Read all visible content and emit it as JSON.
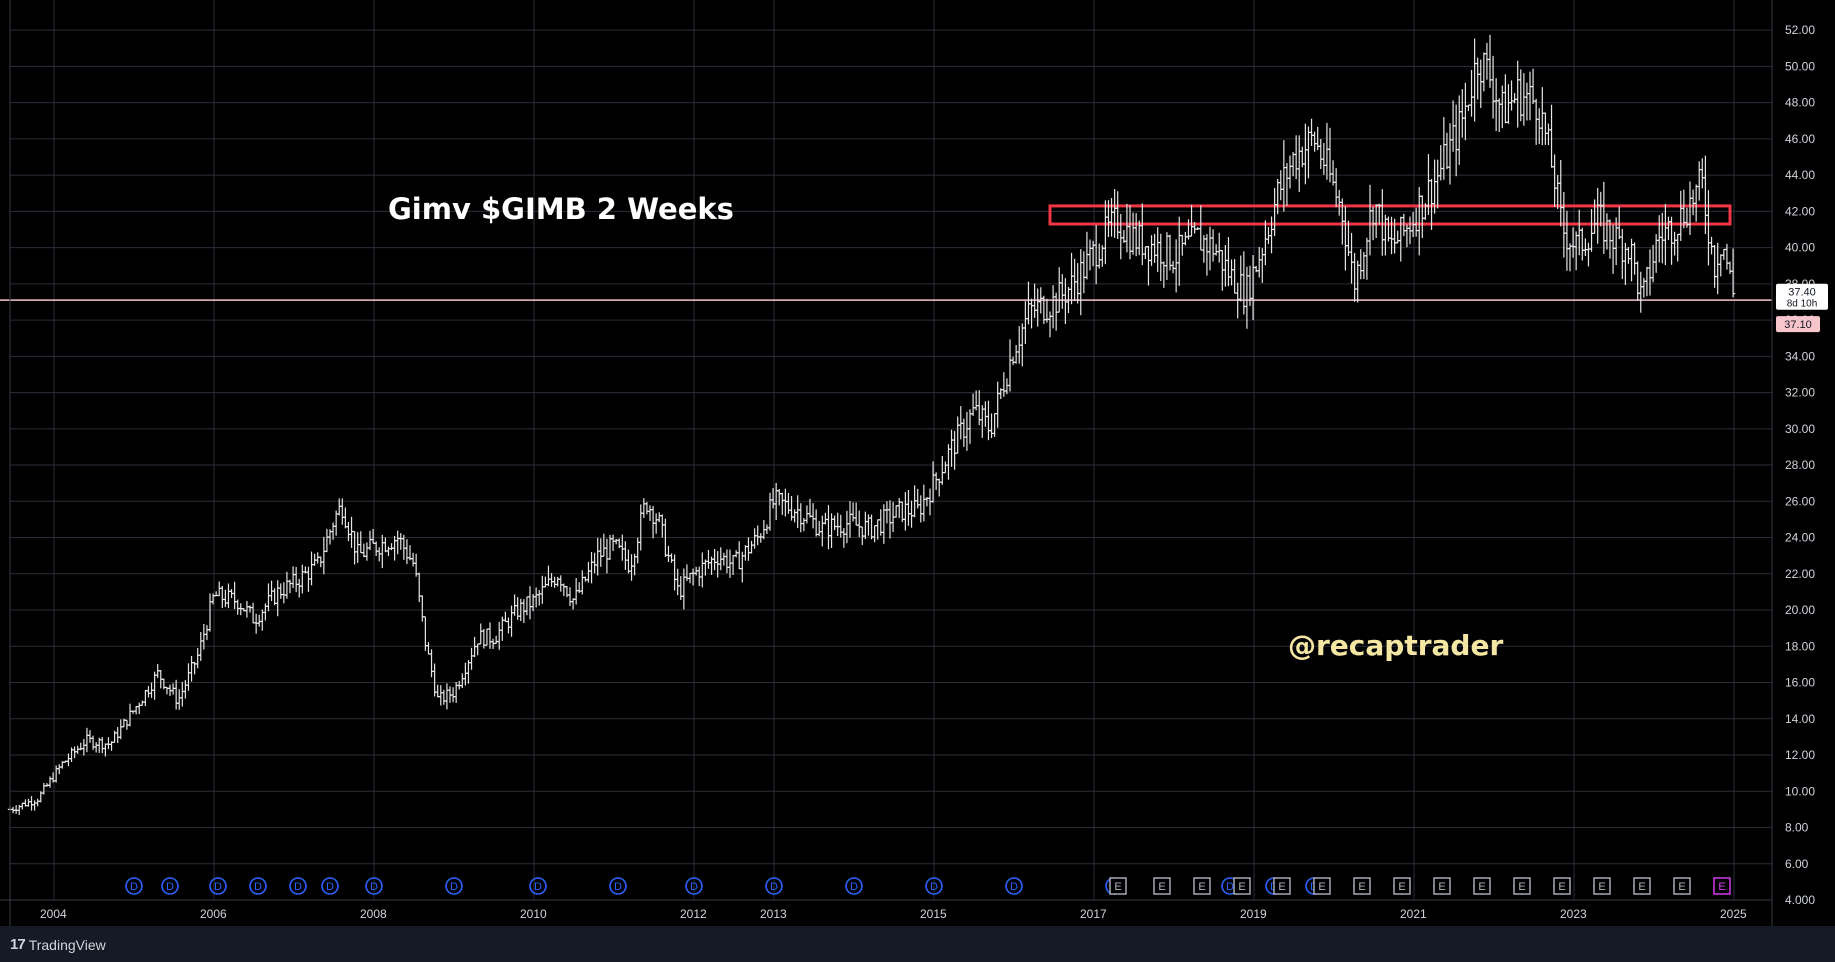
{
  "chart_data": {
    "type": "ohlc",
    "title": "Gimv $GIMB 2 Weeks",
    "watermark": "@recaptrader",
    "xlabel": "",
    "ylabel": "",
    "ylim": [
      4.0,
      53.0
    ],
    "y_ticks": [
      "52.00",
      "50.00",
      "48.00",
      "46.00",
      "44.00",
      "42.00",
      "40.00",
      "38.00",
      "36.00",
      "34.00",
      "32.00",
      "30.00",
      "28.00",
      "26.00",
      "24.00",
      "22.00",
      "20.00",
      "18.00",
      "16.00",
      "14.00",
      "12.00",
      "10.00",
      "8.00",
      "6.00",
      "4.000"
    ],
    "x_ticks": [
      {
        "label": "2004",
        "t": 2004.0
      },
      {
        "label": "2006",
        "t": 2006.0
      },
      {
        "label": "2008",
        "t": 2008.0
      },
      {
        "label": "2010",
        "t": 2010.0
      },
      {
        "label": "2012",
        "t": 2012.0
      },
      {
        "label": "2013",
        "t": 2013.0
      },
      {
        "label": "2015",
        "t": 2015.0
      },
      {
        "label": "2017",
        "t": 2017.0
      },
      {
        "label": "2019",
        "t": 2019.0
      },
      {
        "label": "2021",
        "t": 2021.0
      },
      {
        "label": "2023",
        "t": 2023.0
      },
      {
        "label": "2025",
        "t": 2025.0
      }
    ],
    "xlim": [
      2003.45,
      2025.45
    ],
    "price_path": [
      [
        2003.45,
        9.0
      ],
      [
        2003.8,
        9.6
      ],
      [
        2004.1,
        11.5
      ],
      [
        2004.4,
        12.8
      ],
      [
        2004.7,
        12.6
      ],
      [
        2005.0,
        14.5
      ],
      [
        2005.3,
        16.5
      ],
      [
        2005.55,
        15.0
      ],
      [
        2005.8,
        17.5
      ],
      [
        2006.0,
        20.8
      ],
      [
        2006.3,
        20.5
      ],
      [
        2006.5,
        19.5
      ],
      [
        2006.8,
        21.0
      ],
      [
        2007.0,
        21.5
      ],
      [
        2007.3,
        22.5
      ],
      [
        2007.5,
        25.0
      ],
      [
        2007.6,
        25.8
      ],
      [
        2007.8,
        23.0
      ],
      [
        2008.0,
        23.5
      ],
      [
        2008.3,
        24.0
      ],
      [
        2008.5,
        22.5
      ],
      [
        2008.65,
        18.0
      ],
      [
        2008.8,
        15.0
      ],
      [
        2009.0,
        15.5
      ],
      [
        2009.3,
        18.5
      ],
      [
        2009.5,
        18.5
      ],
      [
        2009.8,
        20.0
      ],
      [
        2010.0,
        20.5
      ],
      [
        2010.3,
        22.0
      ],
      [
        2010.5,
        20.5
      ],
      [
        2010.8,
        23.0
      ],
      [
        2011.0,
        23.5
      ],
      [
        2011.2,
        22.5
      ],
      [
        2011.4,
        26.0
      ],
      [
        2011.55,
        25.0
      ],
      [
        2011.8,
        21.0
      ],
      [
        2012.0,
        22.0
      ],
      [
        2012.3,
        23.0
      ],
      [
        2012.5,
        22.5
      ],
      [
        2012.8,
        24.0
      ],
      [
        2013.0,
        26.0
      ],
      [
        2013.3,
        25.5
      ],
      [
        2013.6,
        24.5
      ],
      [
        2013.9,
        24.8
      ],
      [
        2014.2,
        24.5
      ],
      [
        2014.6,
        25.5
      ],
      [
        2014.8,
        25.5
      ],
      [
        2015.0,
        27.0
      ],
      [
        2015.2,
        28.8
      ],
      [
        2015.5,
        31.0
      ],
      [
        2015.7,
        30.0
      ],
      [
        2015.9,
        33.0
      ],
      [
        2016.0,
        34.5
      ],
      [
        2016.2,
        36.5
      ],
      [
        2016.5,
        37.0
      ],
      [
        2016.7,
        37.8
      ],
      [
        2016.9,
        39.0
      ],
      [
        2017.1,
        40.5
      ],
      [
        2017.3,
        41.5
      ],
      [
        2017.5,
        40.5
      ],
      [
        2017.8,
        40.0
      ],
      [
        2018.0,
        39.5
      ],
      [
        2018.3,
        40.5
      ],
      [
        2018.5,
        40.0
      ],
      [
        2018.7,
        38.5
      ],
      [
        2018.9,
        37.5
      ],
      [
        2019.1,
        40.0
      ],
      [
        2019.3,
        43.0
      ],
      [
        2019.5,
        45.0
      ],
      [
        2019.75,
        46.0
      ],
      [
        2019.9,
        44.5
      ],
      [
        2020.1,
        42.0
      ],
      [
        2020.25,
        38.0
      ],
      [
        2020.5,
        42.5
      ],
      [
        2020.7,
        40.0
      ],
      [
        2020.9,
        41.0
      ],
      [
        2021.1,
        42.5
      ],
      [
        2021.3,
        44.0
      ],
      [
        2021.6,
        47.0
      ],
      [
        2021.8,
        50.5
      ],
      [
        2021.95,
        49.5
      ],
      [
        2022.1,
        47.5
      ],
      [
        2022.3,
        48.5
      ],
      [
        2022.55,
        48.0
      ],
      [
        2022.75,
        44.0
      ],
      [
        2022.85,
        41.0
      ],
      [
        2023.05,
        40.0
      ],
      [
        2023.3,
        41.5
      ],
      [
        2023.5,
        40.5
      ],
      [
        2023.7,
        40.0
      ],
      [
        2023.85,
        37.0
      ],
      [
        2024.05,
        40.5
      ],
      [
        2024.3,
        41.5
      ],
      [
        2024.6,
        43.5
      ],
      [
        2024.75,
        39.0
      ],
      [
        2024.85,
        40.5
      ],
      [
        2025.0,
        37.2
      ]
    ],
    "resistance_zone": {
      "t_start": 2016.45,
      "t_end": 2024.95,
      "y_low": 41.3,
      "y_high": 42.3,
      "color": "#f23645"
    },
    "price_line": {
      "value": 37.1,
      "color": "#f7c5cc"
    },
    "last_price_label": "37.40",
    "countdown_label": "8d 10h",
    "price_line_label": "37.10",
    "dividend_events": [
      2005.0,
      2005.45,
      2006.05,
      2006.55,
      2007.05,
      2007.45,
      2008.0,
      2009.0,
      2010.05,
      2011.05,
      2012.0,
      2013.0,
      2014.0,
      2015.0,
      2016.0,
      2017.25,
      2018.7,
      2019.25,
      2019.75,
      2020.35,
      2020.85,
      2021.35,
      2021.85,
      2022.35,
      2022.85,
      2023.35,
      2023.85,
      2024.35
    ],
    "earnings_events": [
      2017.3,
      2017.85,
      2018.35,
      2018.85,
      2019.35,
      2019.85,
      2020.35,
      2020.85,
      2021.35,
      2021.85,
      2022.35,
      2022.85,
      2023.35,
      2023.85,
      2024.35,
      2024.85
    ],
    "dividend_letter": "D",
    "earnings_letter": "E",
    "colors": {
      "bars": "#e6e6e6",
      "grid": "#2a2e39",
      "axis_text": "#d1d4dc",
      "dividend": "#2962ff",
      "earnings": "#b2b5be",
      "earnings_highlight": "#e040fb"
    }
  },
  "footer": {
    "brand": "TradingView",
    "logo_mark": "17"
  }
}
